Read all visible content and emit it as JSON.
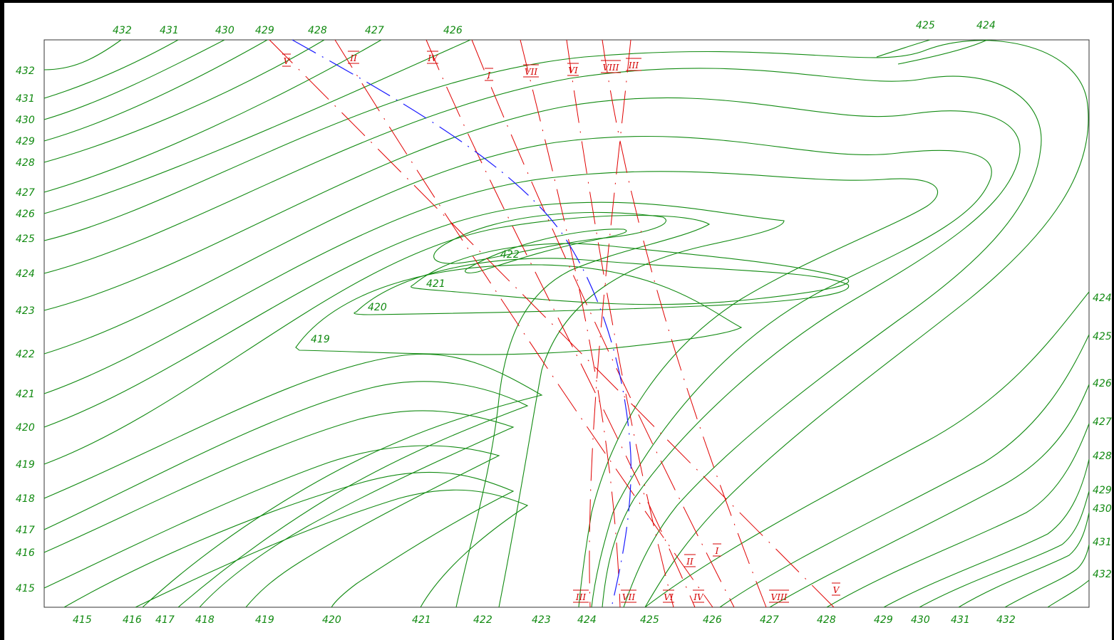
{
  "colors": {
    "contour": "#118a11",
    "contour_label": "#118a11",
    "section_line": "#e00000",
    "section_label": "#d40000",
    "thalweg": "#1a1aff",
    "frame": "#000000"
  },
  "labels": {
    "top": [
      "432",
      "431",
      "430",
      "429",
      "428",
      "427",
      "426",
      "425",
      "424"
    ],
    "left": [
      "432",
      "431",
      "430",
      "429",
      "428",
      "427",
      "426",
      "425",
      "424",
      "423",
      "422",
      "421",
      "420",
      "419",
      "418",
      "417",
      "416",
      "415"
    ],
    "bottom": [
      "415",
      "416",
      "417",
      "418",
      "419",
      "420",
      "421",
      "422",
      "423",
      "424",
      "425",
      "426",
      "427",
      "428",
      "429",
      "430",
      "431",
      "432"
    ],
    "right": [
      "424",
      "425",
      "426",
      "427",
      "428",
      "429",
      "430",
      "431",
      "432"
    ],
    "interior": [
      "422",
      "421",
      "420",
      "419"
    ]
  },
  "sections": {
    "top": [
      "V",
      "II",
      "IV",
      "I",
      "VII",
      "VI",
      "VIII",
      "III"
    ],
    "bottom": [
      "III",
      "VII",
      "VI",
      "IV",
      "II",
      "I",
      "VIII",
      "V"
    ]
  }
}
